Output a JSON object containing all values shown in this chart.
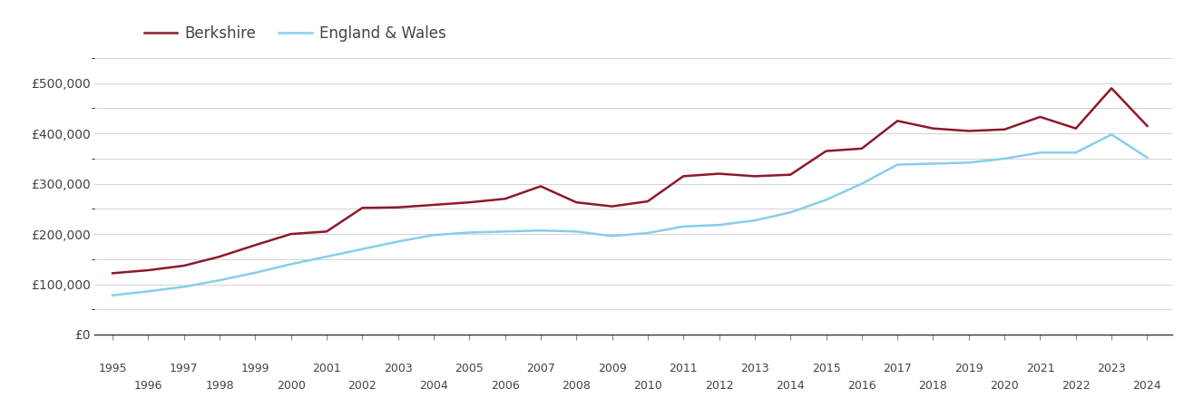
{
  "years": [
    1995,
    1996,
    1997,
    1998,
    1999,
    2000,
    2001,
    2002,
    2003,
    2004,
    2005,
    2006,
    2007,
    2008,
    2009,
    2010,
    2011,
    2012,
    2013,
    2014,
    2015,
    2016,
    2017,
    2018,
    2019,
    2020,
    2021,
    2022,
    2023,
    2024
  ],
  "berkshire": [
    122000,
    128000,
    137000,
    155000,
    178000,
    200000,
    205000,
    252000,
    253000,
    258000,
    263000,
    270000,
    295000,
    263000,
    255000,
    265000,
    315000,
    320000,
    315000,
    318000,
    365000,
    370000,
    425000,
    410000,
    405000,
    408000,
    433000,
    410000,
    490000,
    415000
  ],
  "england_wales": [
    78000,
    86000,
    95000,
    108000,
    123000,
    140000,
    155000,
    170000,
    185000,
    198000,
    203000,
    205000,
    207000,
    205000,
    196000,
    202000,
    215000,
    218000,
    227000,
    243000,
    268000,
    300000,
    338000,
    340000,
    342000,
    350000,
    362000,
    362000,
    398000,
    352000
  ],
  "berkshire_color": "#8B1A2A",
  "england_wales_color": "#87CEEB",
  "background_color": "#ffffff",
  "grid_color": "#cccccc",
  "ylim": [
    0,
    560000
  ],
  "yticks": [
    0,
    100000,
    200000,
    300000,
    400000,
    500000
  ],
  "ytick_labels": [
    "£0",
    "£100,000",
    "£200,000",
    "£300,000",
    "£400,000",
    "£500,000"
  ],
  "legend_berkshire": "Berkshire",
  "legend_england_wales": "England & Wales",
  "line_width": 1.8
}
